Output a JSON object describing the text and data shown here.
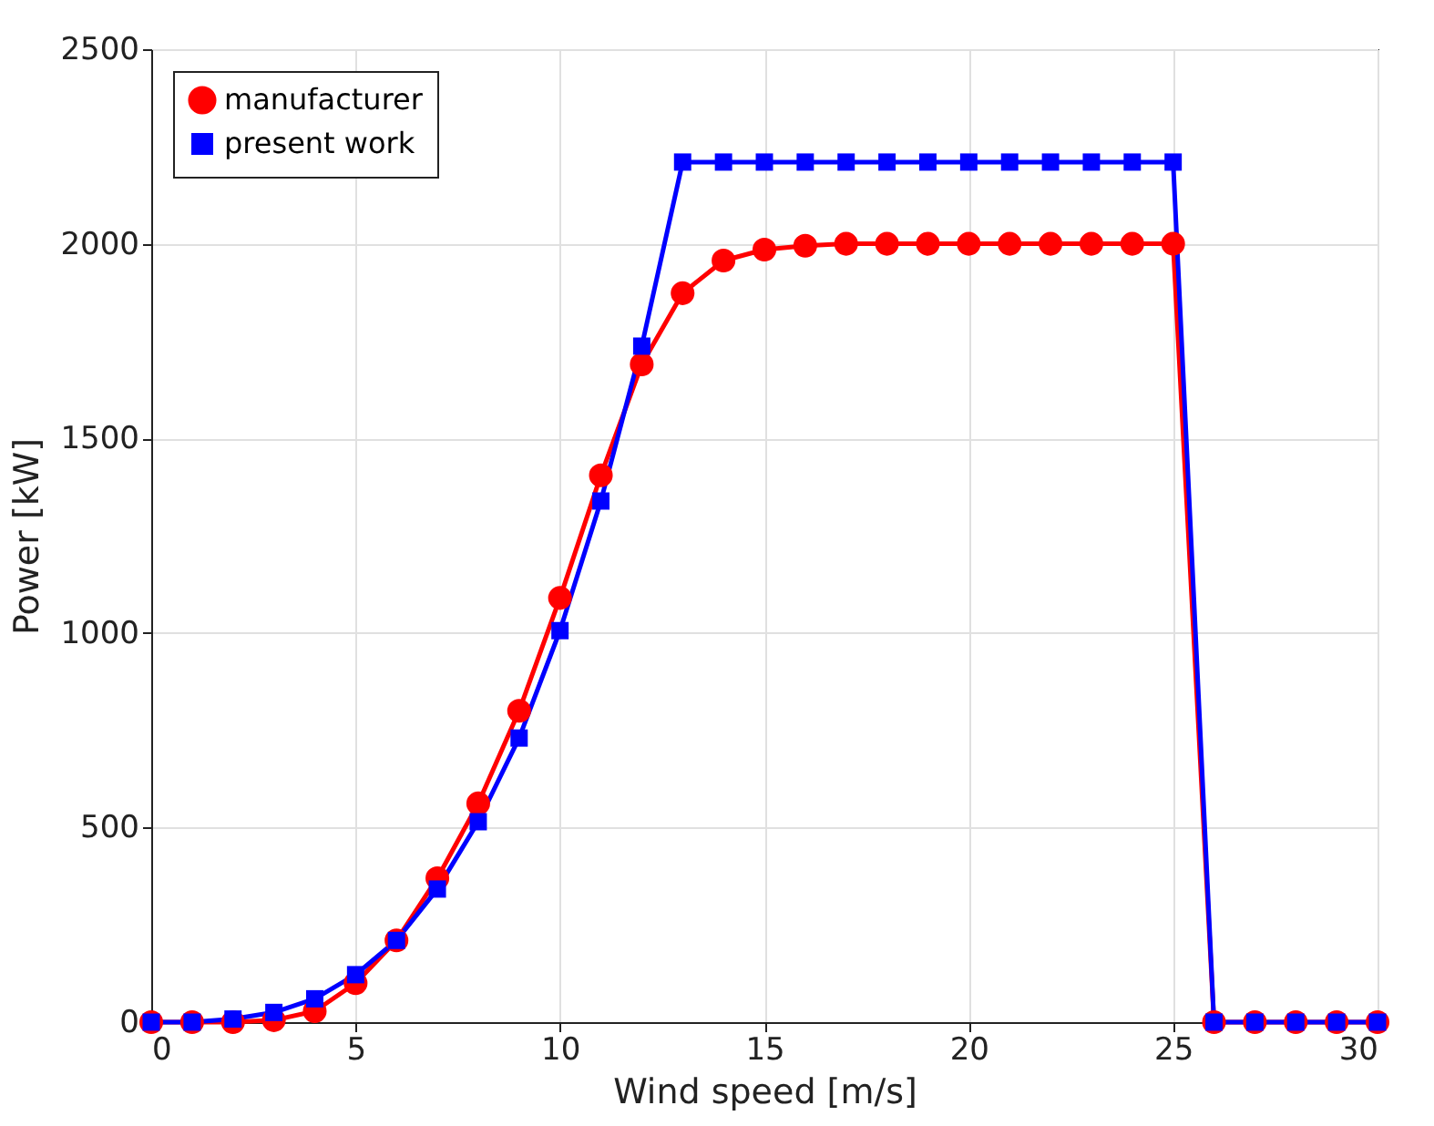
{
  "chart_data": {
    "type": "line",
    "xlabel": "Wind speed [m/s]",
    "ylabel": "Power [kW]",
    "x": [
      0,
      1,
      2,
      3,
      4,
      5,
      6,
      7,
      8,
      9,
      10,
      11,
      12,
      13,
      14,
      15,
      16,
      17,
      18,
      19,
      20,
      21,
      22,
      23,
      24,
      25,
      26,
      27,
      28,
      29,
      30
    ],
    "series": [
      {
        "name": "manufacturer",
        "color": "#ff0000",
        "marker": "circle",
        "values": [
          0,
          0,
          0,
          5,
          28,
          100,
          210,
          370,
          562,
          800,
          1090,
          1405,
          1690,
          1873,
          1957,
          1985,
          1995,
          2000,
          2000,
          2000,
          2000,
          2000,
          2000,
          2000,
          2000,
          2000,
          0,
          0,
          0,
          0,
          0
        ]
      },
      {
        "name": "present work",
        "color": "#0000ff",
        "marker": "square",
        "values": [
          0,
          0,
          8,
          25,
          60,
          122,
          210,
          342,
          515,
          730,
          1006,
          1339,
          1737,
          2210,
          2210,
          2210,
          2210,
          2210,
          2210,
          2210,
          2210,
          2210,
          2210,
          2210,
          2210,
          2210,
          0,
          0,
          0,
          0,
          0
        ]
      }
    ],
    "xlim": [
      0,
      30
    ],
    "xticks": [
      0,
      5,
      10,
      15,
      20,
      25,
      30
    ],
    "ylim": [
      0,
      2500
    ],
    "yticks": [
      0,
      500,
      1000,
      1500,
      2000,
      2500
    ],
    "grid": true,
    "legend": "top left",
    "line_style": "solid"
  }
}
